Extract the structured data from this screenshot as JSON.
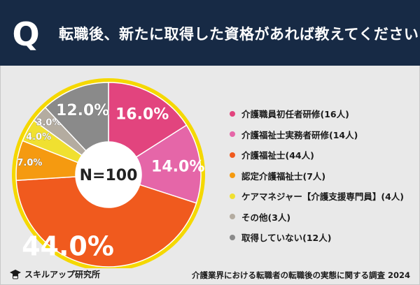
{
  "header": {
    "badge": "Q",
    "title": "転職後、新たに取得した資格があれば教えてください"
  },
  "chart_data": {
    "type": "pie",
    "style": "donut",
    "center_label": "N=100",
    "series": [
      {
        "label": "介護職員初任者研修(16人)",
        "value": 16.0,
        "value_label": "16.0%",
        "color": "#e2447e"
      },
      {
        "label": "介護福祉士実務者研修(14人)",
        "value": 14.0,
        "value_label": "14.0%",
        "color": "#e566a8"
      },
      {
        "label": "介護福祉士(44人)",
        "value": 44.0,
        "value_label": "44.0%",
        "color": "#f05a1e"
      },
      {
        "label": "認定介護福祉士(7人)",
        "value": 7.0,
        "value_label": "7.0%",
        "color": "#f59a10"
      },
      {
        "label": "ケアマネジャー【介護支援専門員】(4人)",
        "value": 4.0,
        "value_label": "4.0%",
        "color": "#f0e030"
      },
      {
        "label": "その他(3人)",
        "value": 3.0,
        "value_label": "3.0%",
        "color": "#b4aca0"
      },
      {
        "label": "取得していない(12人)",
        "value": 12.0,
        "value_label": "12.0%",
        "color": "#8a8a8a"
      }
    ],
    "legend_position": "right",
    "accent_ring_color": "#f5d800"
  },
  "footer": {
    "brand": "スキルアップ研究所",
    "source": "介護業界における転職者の転職後の実態に関する調査 2024"
  }
}
